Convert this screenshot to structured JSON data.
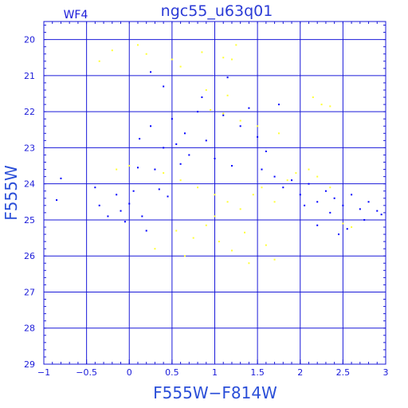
{
  "chart_data": {
    "type": "scatter",
    "title": "ngc55_u63q01",
    "subtitle": "WF4",
    "xlabel": "F555W−F814W",
    "ylabel": "F555W",
    "xlim": [
      -1,
      3
    ],
    "ylim": [
      29,
      19.5
    ],
    "y_inverted": true,
    "grid": true,
    "x_ticks": [
      -1,
      -0.5,
      0,
      0.5,
      1,
      1.5,
      2,
      2.5,
      3
    ],
    "x_tick_labels": [
      "−1",
      "−0.5",
      "0",
      "0.5",
      "1",
      "1.5",
      "2",
      "2.5",
      "3"
    ],
    "y_ticks": [
      20,
      21,
      22,
      23,
      24,
      25,
      26,
      27,
      28,
      29
    ],
    "y_tick_labels": [
      "20",
      "21",
      "22",
      "23",
      "24",
      "25",
      "26",
      "27",
      "28",
      "29"
    ],
    "colors": {
      "frame": "#1a1ad9",
      "grid": "#1a1ad9",
      "blue_points": "#0000ff",
      "yellow_points": "#ffff33"
    },
    "series": [
      {
        "color_role": "blue_points",
        "points": [
          [
            -0.8,
            23.85
          ],
          [
            -0.85,
            24.45
          ],
          [
            -0.4,
            24.1
          ],
          [
            -0.35,
            24.6
          ],
          [
            -0.25,
            24.9
          ],
          [
            -0.15,
            24.3
          ],
          [
            -0.1,
            24.75
          ],
          [
            -0.05,
            25.05
          ],
          [
            0.0,
            24.55
          ],
          [
            0.05,
            24.2
          ],
          [
            0.1,
            23.55
          ],
          [
            0.12,
            22.75
          ],
          [
            0.15,
            24.9
          ],
          [
            0.2,
            25.3
          ],
          [
            0.25,
            22.4
          ],
          [
            0.3,
            23.6
          ],
          [
            0.35,
            24.15
          ],
          [
            0.4,
            23.0
          ],
          [
            0.45,
            24.35
          ],
          [
            0.5,
            22.2
          ],
          [
            0.55,
            22.9
          ],
          [
            0.6,
            23.45
          ],
          [
            0.65,
            22.6
          ],
          [
            0.7,
            23.2
          ],
          [
            0.8,
            22.0
          ],
          [
            0.9,
            22.8
          ],
          [
            1.0,
            23.3
          ],
          [
            1.1,
            22.1
          ],
          [
            1.2,
            23.5
          ],
          [
            1.3,
            22.4
          ],
          [
            1.4,
            21.9
          ],
          [
            1.5,
            22.7
          ],
          [
            1.55,
            23.6
          ],
          [
            1.6,
            23.1
          ],
          [
            1.7,
            23.8
          ],
          [
            1.75,
            21.8
          ],
          [
            1.8,
            24.1
          ],
          [
            1.9,
            23.9
          ],
          [
            2.0,
            24.3
          ],
          [
            2.05,
            24.6
          ],
          [
            2.1,
            24.0
          ],
          [
            2.2,
            24.5
          ],
          [
            2.3,
            24.2
          ],
          [
            2.35,
            24.8
          ],
          [
            2.4,
            24.4
          ],
          [
            2.5,
            24.6
          ],
          [
            2.6,
            24.3
          ],
          [
            2.7,
            24.7
          ],
          [
            2.75,
            25.0
          ],
          [
            2.8,
            24.5
          ],
          [
            2.9,
            24.75
          ],
          [
            2.95,
            24.85
          ],
          [
            2.55,
            25.25
          ],
          [
            2.45,
            25.4
          ],
          [
            2.2,
            25.15
          ],
          [
            0.25,
            20.9
          ],
          [
            0.4,
            21.3
          ],
          [
            0.85,
            21.6
          ],
          [
            1.15,
            21.05
          ]
        ]
      },
      {
        "color_role": "yellow_points",
        "points": [
          [
            -0.35,
            20.6
          ],
          [
            -0.2,
            20.3
          ],
          [
            0.1,
            20.15
          ],
          [
            0.2,
            20.4
          ],
          [
            0.5,
            20.55
          ],
          [
            0.6,
            20.75
          ],
          [
            0.85,
            20.35
          ],
          [
            1.1,
            20.5
          ],
          [
            1.2,
            20.55
          ],
          [
            1.25,
            20.15
          ],
          [
            0.9,
            21.4
          ],
          [
            1.15,
            21.55
          ],
          [
            0.95,
            21.95
          ],
          [
            1.1,
            22.05
          ],
          [
            1.3,
            22.25
          ],
          [
            1.5,
            22.4
          ],
          [
            1.75,
            22.6
          ],
          [
            2.15,
            21.6
          ],
          [
            2.25,
            21.8
          ],
          [
            2.35,
            21.85
          ],
          [
            0.0,
            23.5
          ],
          [
            -0.15,
            23.6
          ],
          [
            0.4,
            23.7
          ],
          [
            0.6,
            23.9
          ],
          [
            0.8,
            24.1
          ],
          [
            1.0,
            24.3
          ],
          [
            1.15,
            24.5
          ],
          [
            1.3,
            24.7
          ],
          [
            1.45,
            24.3
          ],
          [
            1.55,
            24.1
          ],
          [
            1.7,
            24.5
          ],
          [
            1.85,
            23.9
          ],
          [
            1.95,
            23.7
          ],
          [
            2.1,
            23.6
          ],
          [
            2.2,
            23.8
          ],
          [
            2.35,
            24.1
          ],
          [
            2.5,
            25.1
          ],
          [
            2.6,
            25.2
          ],
          [
            0.55,
            25.3
          ],
          [
            0.75,
            25.5
          ],
          [
            0.9,
            25.15
          ],
          [
            1.05,
            25.6
          ],
          [
            1.2,
            25.85
          ],
          [
            1.35,
            25.35
          ],
          [
            1.6,
            25.7
          ],
          [
            0.3,
            25.8
          ],
          [
            0.65,
            26.0
          ],
          [
            1.4,
            26.2
          ],
          [
            1.7,
            26.1
          ],
          [
            1.0,
            24.9
          ]
        ]
      }
    ]
  }
}
